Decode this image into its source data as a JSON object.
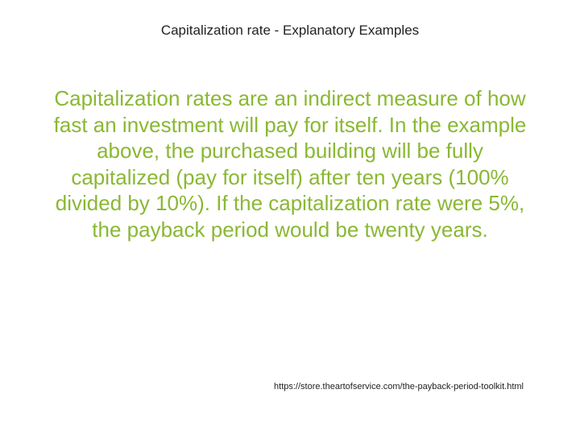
{
  "title": {
    "text": "Capitalization rate - Explanatory Examples",
    "color": "#222222",
    "fontsize": 17
  },
  "body": {
    "text": "Capitalization rates are an indirect measure of how fast an investment will pay for itself. In the example above, the purchased building will be fully capitalized (pay for itself) after ten years (100% divided by 10%). If the capitalization rate were 5%, the payback period would be twenty years.",
    "color": "#8ab833",
    "fontsize": 26
  },
  "footer": {
    "text": "https://store.theartofservice.com/the-payback-period-toolkit.html",
    "color": "#222222",
    "fontsize": 11
  },
  "background_color": "#ffffff"
}
